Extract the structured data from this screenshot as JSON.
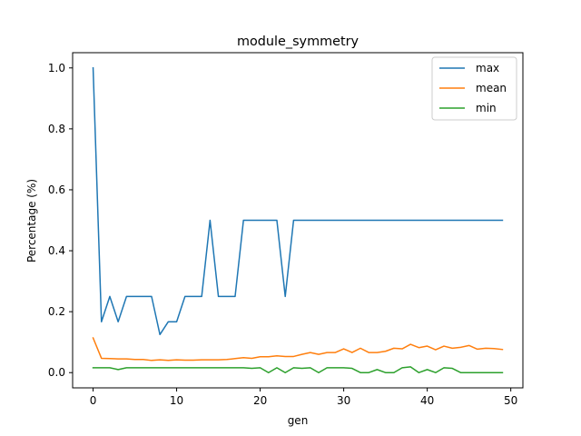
{
  "chart_data": {
    "type": "line",
    "title": "module_symmetry",
    "xlabel": "gen",
    "ylabel": "Percentage (%)",
    "xlim": [
      -2.45,
      51.45
    ],
    "ylim": [
      -0.05,
      1.05
    ],
    "xticks": [
      0,
      10,
      20,
      30,
      40,
      50
    ],
    "xtick_labels": [
      "0",
      "10",
      "20",
      "30",
      "40",
      "50"
    ],
    "yticks": [
      0.0,
      0.2,
      0.4,
      0.6,
      0.8,
      1.0
    ],
    "ytick_labels": [
      "0.0",
      "0.2",
      "0.4",
      "0.6",
      "0.8",
      "1.0"
    ],
    "grid": false,
    "legend_position": "top-right",
    "x": [
      0,
      1,
      2,
      3,
      4,
      5,
      6,
      7,
      8,
      9,
      10,
      11,
      12,
      13,
      14,
      15,
      16,
      17,
      18,
      19,
      20,
      21,
      22,
      23,
      24,
      25,
      26,
      27,
      28,
      29,
      30,
      31,
      32,
      33,
      34,
      35,
      36,
      37,
      38,
      39,
      40,
      41,
      42,
      43,
      44,
      45,
      46,
      47,
      48,
      49
    ],
    "series": [
      {
        "name": "max",
        "color": "#1f77b4",
        "values": [
          1.0,
          0.167,
          0.25,
          0.167,
          0.25,
          0.25,
          0.25,
          0.25,
          0.125,
          0.167,
          0.167,
          0.25,
          0.25,
          0.25,
          0.5,
          0.25,
          0.25,
          0.25,
          0.5,
          0.5,
          0.5,
          0.5,
          0.5,
          0.25,
          0.5,
          0.5,
          0.5,
          0.5,
          0.5,
          0.5,
          0.5,
          0.5,
          0.5,
          0.5,
          0.5,
          0.5,
          0.5,
          0.5,
          0.5,
          0.5,
          0.5,
          0.5,
          0.5,
          0.5,
          0.5,
          0.5,
          0.5,
          0.5,
          0.5,
          0.5
        ]
      },
      {
        "name": "mean",
        "color": "#ff7f0e",
        "values": [
          0.114,
          0.047,
          0.046,
          0.045,
          0.045,
          0.043,
          0.043,
          0.04,
          0.042,
          0.04,
          0.042,
          0.041,
          0.041,
          0.042,
          0.042,
          0.042,
          0.043,
          0.046,
          0.049,
          0.047,
          0.052,
          0.052,
          0.055,
          0.053,
          0.053,
          0.06,
          0.066,
          0.06,
          0.066,
          0.066,
          0.078,
          0.066,
          0.08,
          0.066,
          0.066,
          0.07,
          0.08,
          0.078,
          0.093,
          0.082,
          0.087,
          0.075,
          0.087,
          0.08,
          0.083,
          0.089,
          0.077,
          0.08,
          0.079,
          0.076
        ]
      },
      {
        "name": "min",
        "color": "#2ca02c",
        "values": [
          0.016,
          0.016,
          0.016,
          0.01,
          0.016,
          0.016,
          0.016,
          0.016,
          0.016,
          0.016,
          0.016,
          0.016,
          0.016,
          0.016,
          0.016,
          0.016,
          0.016,
          0.016,
          0.016,
          0.014,
          0.016,
          0.0,
          0.016,
          0.0,
          0.016,
          0.014,
          0.016,
          0.0,
          0.016,
          0.016,
          0.016,
          0.014,
          0.0,
          0.0,
          0.01,
          0.0,
          0.0,
          0.016,
          0.019,
          0.0,
          0.01,
          0.0,
          0.016,
          0.014,
          0.0,
          0.0,
          0.0,
          0.0,
          0.0,
          0.0
        ]
      }
    ]
  }
}
